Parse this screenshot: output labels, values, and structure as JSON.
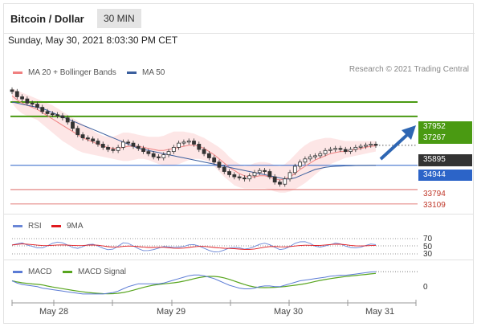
{
  "header": {
    "title": "Bitcoin / Dollar",
    "timeframe": "30 MIN"
  },
  "datetime": "Sunday, May 30, 2021 8:03:30 PM CET",
  "legend": {
    "ma20": "MA 20 + Bollinger Bands",
    "ma50": "MA 50",
    "copyright": "Research © 2021 Trading Central"
  },
  "colors": {
    "ma20": "#f08080",
    "ma50": "#3b5f9e",
    "bands": "#fbd5d5",
    "resistance": "#4a9a12",
    "support": "#2c64c8",
    "lower": "#d9534f",
    "price": "#333333",
    "arrow": "#2e66b3",
    "rsi": "#6a86d6",
    "rsi_ma": "#e0191e",
    "macd": "#5b7bd5",
    "macd_signal": "#58a51f"
  },
  "levels": {
    "resistance_1": "37952",
    "resistance_2": "37267",
    "last_price": "35895",
    "support_1": "34944",
    "support_2": "33794",
    "support_3": "33109"
  },
  "rsi": {
    "label": "RSI",
    "ma_label": "9MA",
    "levels": [
      "70",
      "50",
      "30"
    ]
  },
  "macd": {
    "label": "MACD",
    "signal_label": "MACD Signal",
    "zero": "0"
  },
  "x_axis": [
    "May 28",
    "May 29",
    "May 30",
    "May 31"
  ],
  "chart_data": {
    "type": "candlestick",
    "y_range": [
      32800,
      38600
    ],
    "closes": [
      38450,
      38200,
      38100,
      37900,
      37850,
      37700,
      37500,
      37400,
      37350,
      37300,
      37200,
      37000,
      36700,
      36400,
      36250,
      36200,
      36100,
      35950,
      35800,
      35700,
      35650,
      35800,
      36050,
      36000,
      35850,
      35750,
      35600,
      35500,
      35350,
      35300,
      35450,
      35600,
      35800,
      36000,
      36050,
      36100,
      35950,
      35700,
      35500,
      35300,
      35100,
      34850,
      34650,
      34500,
      34400,
      34350,
      34300,
      34450,
      34600,
      34700,
      34650,
      34400,
      34150,
      34050,
      34300,
      34600,
      34900,
      35100,
      35250,
      35350,
      35400,
      35500,
      35650,
      35700,
      35750,
      35700,
      35600,
      35700,
      35800,
      35850,
      35900,
      35950,
      35895
    ],
    "ma20_line": [
      38250,
      38050,
      37900,
      37800,
      37700,
      37600,
      37450,
      37300,
      37150,
      37000,
      36850,
      36700,
      36550,
      36400,
      36250,
      36150,
      36050,
      35950,
      35850,
      35800,
      35750,
      35750,
      35800,
      35850,
      35850,
      35850,
      35800,
      35750,
      35700,
      35650,
      35650,
      35700,
      35750,
      35800,
      35850,
      35900,
      35900,
      35850,
      35750,
      35600,
      35450,
      35250,
      35050,
      34850,
      34700,
      34550,
      34450,
      34400,
      34400,
      34450,
      34450,
      34400,
      34300,
      34250,
      34300,
      34400,
      34550,
      34750,
      34900,
      35050,
      35200,
      35300,
      35400,
      35500,
      35550,
      35600,
      35600,
      35650,
      35700,
      35750,
      35800,
      35850,
      35870
    ],
    "upper_band": [
      38600,
      38500,
      38400,
      38300,
      38200,
      38100,
      38000,
      37900,
      37800,
      37650,
      37500,
      37350,
      37200,
      37050,
      36900,
      36750,
      36600,
      36450,
      36350,
      36300,
      36300,
      36400,
      36500,
      36500,
      36450,
      36400,
      36350,
      36300,
      36300,
      36300,
      36350,
      36450,
      36550,
      36550,
      36550,
      36500,
      36450,
      36350,
      36250,
      36100,
      35950,
      35800,
      35600,
      35350,
      35150,
      35000,
      34900,
      34950,
      35050,
      35100,
      35100,
      35050,
      34950,
      34900,
      35000,
      35200,
      35450,
      35700,
      35900,
      36050,
      36150,
      36200,
      36250,
      36250,
      36200,
      36150,
      36100,
      36100,
      36100,
      36100,
      36100,
      36100,
      36100
    ],
    "lower_band": [
      37900,
      37600,
      37400,
      37300,
      37200,
      37100,
      36900,
      36700,
      36500,
      36300,
      36100,
      35950,
      35800,
      35650,
      35550,
      35500,
      35450,
      35400,
      35350,
      35300,
      35250,
      35200,
      35150,
      35150,
      35200,
      35250,
      35250,
      35200,
      35100,
      35000,
      34950,
      34950,
      34950,
      35000,
      35100,
      35200,
      35250,
      35250,
      35200,
      35100,
      34900,
      34650,
      34400,
      34200,
      34000,
      33900,
      33850,
      33850,
      33850,
      33850,
      33850,
      33800,
      33700,
      33650,
      33650,
      33700,
      33800,
      33950,
      34100,
      34300,
      34500,
      34700,
      34850,
      35000,
      35100,
      35200,
      35300,
      35350,
      35400,
      35450,
      35500,
      35550,
      35600
    ],
    "ma50_line": [
      37950,
      37900,
      37850,
      37800,
      37750,
      37700,
      37650,
      37550,
      37450,
      37350,
      37250,
      37150,
      37050,
      36950,
      36850,
      36750,
      36650,
      36550,
      36450,
      36350,
      36250,
      36150,
      36050,
      35950,
      35850,
      35750,
      35700,
      35650,
      35600,
      35550,
      35500,
      35450,
      35400,
      35350,
      35300,
      35250,
      35200,
      35150,
      35100,
      35050,
      35000,
      34950,
      34900,
      34850,
      34800,
      34750,
      34700,
      34650,
      34600,
      34550,
      34500,
      34450,
      34400,
      34350,
      34300,
      34300,
      34350,
      34450,
      34550,
      34650,
      34750,
      34800,
      34850,
      34880,
      34900,
      34910,
      34920,
      34930,
      34935,
      34940,
      34942,
      34944,
      34944
    ]
  }
}
